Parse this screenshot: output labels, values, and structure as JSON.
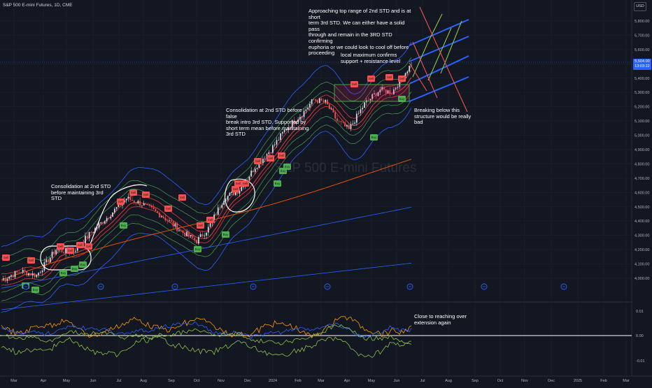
{
  "header": {
    "symbol_title": "S&P 500 E-mini Futures, 1D, CME"
  },
  "currency_button": "USD",
  "watermark": "S&P 500 E-mini Futures",
  "last_price": {
    "price": "5,504.00",
    "countdown": "13:03:22"
  },
  "price_axis_labels": [
    "5,800.00",
    "5,700.00",
    "5,600.00",
    "5,500.00",
    "5,400.00",
    "5,300.00",
    "5,200.00",
    "5,100.00",
    "5,000.00",
    "4,900.00",
    "4,800.00",
    "4,700.00",
    "4,600.00",
    "4,500.00",
    "4,400.00",
    "4,300.00",
    "4,200.00",
    "4,100.00",
    "4,000.00"
  ],
  "oscillator_axis_labels": [
    "0.01",
    "0.00",
    "-0.01"
  ],
  "time_axis_labels": [
    "Mar",
    "Apr",
    "May",
    "Jun",
    "Jul",
    "Aug",
    "Sep",
    "Oct",
    "Nov",
    "Dec",
    "2024",
    "Feb",
    "Mar",
    "Apr",
    "May",
    "Jun",
    "Jul",
    "Aug",
    "Sep",
    "Oct",
    "Nov",
    "Dec",
    "2025",
    "Feb",
    "Mar"
  ],
  "annotations": {
    "top_std": "Approaching top range of 2nd STD and is at short\nterm 3rd STD. We can either have a solid pass\nthrough and remain in the 3RD STD confirming\neuphoria or we could look to cool off before\nproceeding",
    "local_max": "local maximum confirms\nsupport + resistance level",
    "consolidation_dec": "Consolidation at 2nd STD before false\nbreak intro 3rd STD. Supported by\nshort term mean before maintaining\n3rd STD",
    "breaking_below": "Breaking below this\nstructure would be really\nbad",
    "consolidation_apr": "Consolidation at 2nd STD\nbefore maintaining 3rd\nSTD",
    "overextension": "Close to reaching over\nextension again"
  },
  "signals": {
    "sell_label": "Sell",
    "buy_label": "Buy",
    "sell_color": "#f05350",
    "buy_color": "#4caf50"
  },
  "colors": {
    "background": "#131722",
    "price_line": "#ffffff",
    "inner_band": "#e53935",
    "mid_band": "#43a047",
    "outer_band": "#2962ff",
    "long_mean": "#e65100",
    "channel_up": "#8bc34a",
    "channel_down": "#ef5350",
    "oscillator_orange": "#ff9800",
    "oscillator_blue": "#2962ff",
    "oscillator_green": "#8bc34a",
    "accent": "#2962ff"
  }
}
